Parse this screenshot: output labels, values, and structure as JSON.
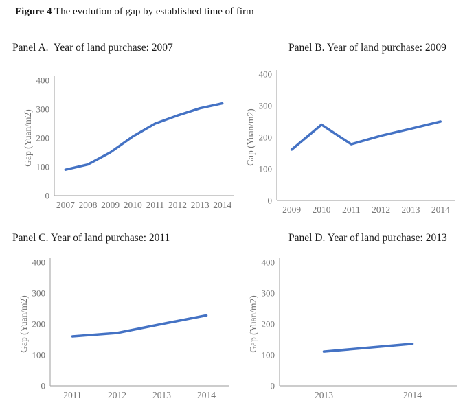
{
  "figure": {
    "label": "Figure 4",
    "caption": " The evolution of gap by established time of firm"
  },
  "colors": {
    "line": "#4472C4",
    "axis": "#ADADAD",
    "tick_text": "#757575",
    "title_text": "#1A1A1A"
  },
  "chart_data": [
    {
      "panel": "A",
      "type": "line",
      "title": "Panel A.  Year of land purchase: 2007",
      "categories": [
        "2007",
        "2008",
        "2009",
        "2010",
        "2011",
        "2012",
        "2013",
        "2014"
      ],
      "values": [
        90,
        108,
        150,
        205,
        250,
        278,
        303,
        320
      ],
      "ylabel": "Gap (Yuan/m2)",
      "xlabel": "",
      "ylim": [
        0,
        400
      ],
      "yticks": [
        0,
        100,
        200,
        300,
        400
      ],
      "grid": false,
      "legend": "none"
    },
    {
      "panel": "B",
      "type": "line",
      "title": "Panel B. Year of land purchase: 2009",
      "categories": [
        "2009",
        "2010",
        "2011",
        "2012",
        "2013",
        "2014"
      ],
      "values": [
        161,
        240,
        178,
        205,
        227,
        250
      ],
      "ylabel": "Gap (Yuan/m2)",
      "xlabel": "",
      "ylim": [
        0,
        400
      ],
      "yticks": [
        0,
        100,
        200,
        300,
        400
      ],
      "grid": false,
      "legend": "none"
    },
    {
      "panel": "C",
      "type": "line",
      "title": "Panel C. Year of land purchase: 2011",
      "categories": [
        "2011",
        "2012",
        "2013",
        "2014"
      ],
      "values": [
        160,
        171,
        200,
        228
      ],
      "ylabel": "Gap (Yuan/m2)",
      "xlabel": "",
      "ylim": [
        0,
        400
      ],
      "yticks": [
        0,
        100,
        200,
        300,
        400
      ],
      "grid": false,
      "legend": "none"
    },
    {
      "panel": "D",
      "type": "line",
      "title": "Panel D. Year of land purchase: 2013",
      "categories": [
        "2013",
        "2014"
      ],
      "values": [
        111,
        136
      ],
      "ylabel": "Gap (Yuan/m2)",
      "xlabel": "",
      "ylim": [
        0,
        400
      ],
      "yticks": [
        0,
        100,
        200,
        300,
        400
      ],
      "grid": false,
      "legend": "none"
    }
  ]
}
